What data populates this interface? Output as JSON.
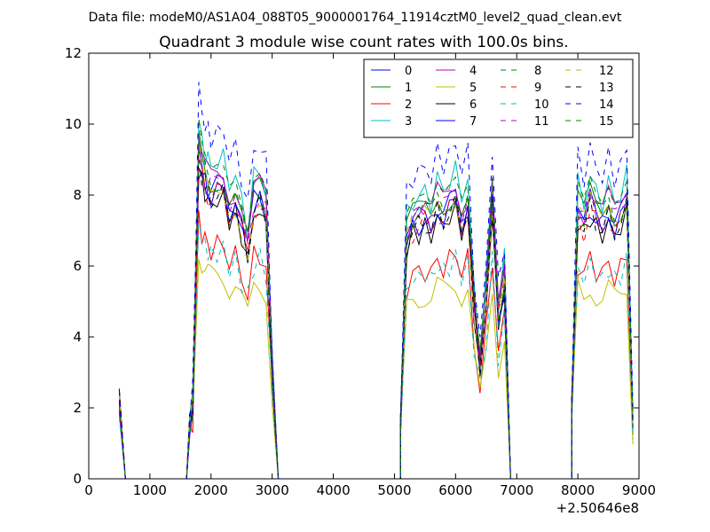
{
  "suptitle": "Data file: modeM0/AS1A04_088T05_9000001764_11914cztM0_level2_quad_clean.evt",
  "chart_data": {
    "type": "line",
    "title": "Quadrant 3 module wise count rates with 100.0s bins.",
    "xlabel": "",
    "ylabel": "",
    "x_offset_label": "+2.50646e8",
    "xlim": [
      0,
      9000
    ],
    "ylim": [
      0,
      12
    ],
    "xticks": [
      0,
      1000,
      2000,
      3000,
      4000,
      5000,
      6000,
      7000,
      8000,
      9000
    ],
    "yticks": [
      0,
      2,
      4,
      6,
      8,
      10,
      12
    ],
    "legend_position": "top-right",
    "legend_columns": 4,
    "segments": [
      {
        "x": [
          500,
          600,
          700,
          1000,
          1300,
          1600
        ],
        "values": [
          2.2,
          0,
          0,
          0,
          0,
          0
        ]
      },
      {
        "x": [
          1650,
          1700,
          1750,
          1800,
          1850,
          1900,
          1950,
          2000,
          2100,
          2200,
          2300,
          2400,
          2500,
          2600,
          2700,
          2800,
          2900,
          3000,
          3100
        ],
        "values": [
          1.5,
          2.0,
          5.5,
          9.0,
          8.5,
          8.2,
          8.0,
          7.9,
          8.0,
          8.0,
          7.5,
          7.6,
          7.0,
          6.3,
          7.6,
          7.7,
          7.3,
          3.0,
          0
        ]
      },
      {
        "x": [
          3100,
          4000,
          5000,
          5100
        ],
        "values": [
          0,
          0,
          0,
          0
        ]
      },
      {
        "x": [
          5100,
          5200,
          5300,
          5400,
          5500,
          5600,
          5700,
          5800,
          5900,
          6000,
          6100,
          6200,
          6300,
          6400,
          6500,
          6600,
          6700,
          6800,
          6900,
          7000
        ],
        "values": [
          1.5,
          6.6,
          7.0,
          7.1,
          7.2,
          7.0,
          7.5,
          7.3,
          7.5,
          7.7,
          7.2,
          7.5,
          4.8,
          3.1,
          5.0,
          7.6,
          4.4,
          5.5,
          0,
          0
        ]
      },
      {
        "x": [
          7000,
          7500,
          7900
        ],
        "values": [
          0,
          0,
          0
        ]
      },
      {
        "x": [
          7900,
          8000,
          8100,
          8200,
          8300,
          8400,
          8500,
          8600,
          8700,
          8800,
          8900
        ],
        "values": [
          2.0,
          7.4,
          7.0,
          7.6,
          7.2,
          7.0,
          7.4,
          7.0,
          7.2,
          7.6,
          1.8
        ]
      }
    ],
    "series": [
      {
        "name": "0",
        "color": "#0000ff",
        "dash": "solid",
        "scale": 1.03,
        "bias": 0.0
      },
      {
        "name": "1",
        "color": "#008000",
        "dash": "solid",
        "scale": 1.06,
        "bias": 0.0
      },
      {
        "name": "2",
        "color": "#ff0000",
        "dash": "solid",
        "scale": 0.82,
        "bias": 0.0
      },
      {
        "name": "3",
        "color": "#00bfbf",
        "dash": "solid",
        "scale": 1.12,
        "bias": 0.0
      },
      {
        "name": "4",
        "color": "#bf00bf",
        "dash": "solid",
        "scale": 1.07,
        "bias": 0.0
      },
      {
        "name": "5",
        "color": "#bfbf00",
        "dash": "solid",
        "scale": 0.72,
        "bias": 0.0
      },
      {
        "name": "6",
        "color": "#000000",
        "dash": "solid",
        "scale": 0.98,
        "bias": 0.0
      },
      {
        "name": "7",
        "color": "#0000ff",
        "dash": "solid",
        "scale": 1.01,
        "bias": 0.0
      },
      {
        "name": "8",
        "color": "#008000",
        "dash": "dashed",
        "scale": 1.15,
        "bias": 0.0
      },
      {
        "name": "9",
        "color": "#ff0000",
        "dash": "dashed",
        "scale": 1.0,
        "bias": 0.0
      },
      {
        "name": "10",
        "color": "#00bfbf",
        "dash": "dashed",
        "scale": 0.8,
        "bias": 0.0
      },
      {
        "name": "11",
        "color": "#bf00bf",
        "dash": "dashed",
        "scale": 1.04,
        "bias": 0.0
      },
      {
        "name": "12",
        "color": "#bfbf00",
        "dash": "dashed",
        "scale": 1.02,
        "bias": 0.0
      },
      {
        "name": "13",
        "color": "#000000",
        "dash": "dashed",
        "scale": 1.0,
        "bias": 0.0
      },
      {
        "name": "14",
        "color": "#0000ff",
        "dash": "dashed",
        "scale": 1.22,
        "bias": 0.0
      },
      {
        "name": "15",
        "color": "#008000",
        "dash": "dashed",
        "scale": 1.05,
        "bias": 0.0
      }
    ]
  }
}
